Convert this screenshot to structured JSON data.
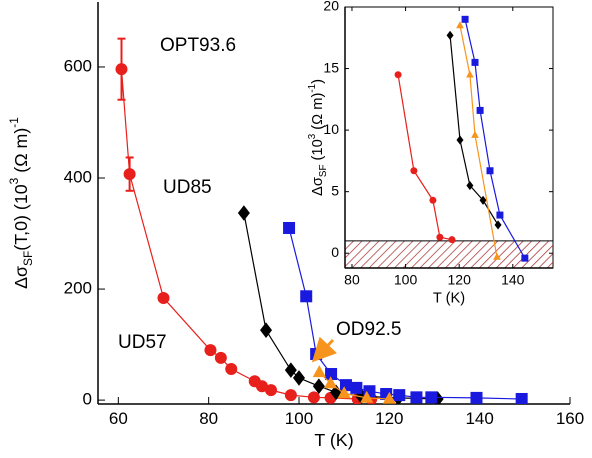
{
  "chart_data": [
    {
      "type": "scatter",
      "xlabel": "T (K)",
      "ylabel_parts": [
        {
          "text": "Δσ"
        },
        {
          "text": "SF",
          "sub": true
        },
        {
          "text": "(T,0)  (10"
        },
        {
          "text": "3",
          "sup": true
        },
        {
          "text": " (Ω m)"
        },
        {
          "text": "-1",
          "sup": true
        }
      ],
      "xlim": [
        55.5,
        160
      ],
      "ylim": [
        -7,
        717
      ],
      "xticks": [
        60,
        80,
        100,
        120,
        140,
        160
      ],
      "yticks": [
        0,
        200,
        400,
        600
      ],
      "series": [
        {
          "name": "UD57",
          "color": "#e8201c",
          "marker": "circle",
          "x": [
            60.7,
            62.5,
            70,
            80.4,
            82.7,
            85,
            90.2,
            91.8,
            93.8,
            98.2,
            103.3,
            107,
            113,
            116
          ],
          "values": [
            596,
            407,
            184,
            90,
            76,
            56,
            34,
            25,
            18,
            9,
            5,
            4,
            2,
            2
          ],
          "errors": [
            55,
            30,
            null,
            null,
            null,
            null,
            null,
            null,
            null,
            null,
            null,
            null,
            null,
            null
          ]
        },
        {
          "name": "UD85",
          "color": "#000000",
          "marker": "diamond",
          "x": [
            87.8,
            92.7,
            98.2,
            100,
            104.4,
            108.2,
            113.8,
            122,
            130.7
          ],
          "values": [
            337,
            126,
            54,
            40,
            25,
            14,
            7,
            4,
            2
          ]
        },
        {
          "name": "OPT93.6",
          "color": "#1a1adf",
          "marker": "square",
          "x": [
            97.8,
            101.6,
            103.8,
            107.1,
            110.4,
            112.7,
            115.6,
            119.3,
            122.2,
            126,
            129.3,
            139.3,
            149.3
          ],
          "values": [
            310,
            187,
            83,
            47,
            27,
            22,
            16,
            11,
            9,
            5,
            5,
            4,
            2
          ]
        },
        {
          "name": "OD92.5",
          "color": "#f7941d",
          "marker": "triangle",
          "x": [
            104.5,
            107,
            110,
            115,
            120
          ],
          "values": [
            50,
            30,
            12,
            4,
            2
          ]
        }
      ]
    },
    {
      "type": "scatter",
      "xlabel": "T (K)",
      "ylabel_parts": [
        {
          "text": "Δσ"
        },
        {
          "text": "SF",
          "sub": true
        },
        {
          "text": " (10"
        },
        {
          "text": "3",
          "sup": true
        },
        {
          "text": " (Ω m)"
        },
        {
          "text": "-1",
          "sup": true
        },
        {
          "text": ")"
        }
      ],
      "xlim": [
        77.4,
        155
      ],
      "ylim": [
        -1.2,
        20
      ],
      "xticks": [
        80,
        100,
        120,
        140
      ],
      "yticks": [
        0,
        5,
        10,
        15,
        20
      ],
      "shaded_below": 1,
      "series": [
        {
          "color": "#e8201c",
          "marker": "circle",
          "x": [
            97.2,
            103.1,
            110.2,
            112.8,
            117.3
          ],
          "values": [
            14.5,
            6.7,
            4.3,
            1.3,
            1.1
          ]
        },
        {
          "color": "#000000",
          "marker": "diamond",
          "x": [
            116.6,
            120.3,
            124,
            128.9,
            134.5
          ],
          "values": [
            17.7,
            9.2,
            5.5,
            4.3,
            2.3
          ]
        },
        {
          "color": "#f7941d",
          "marker": "triangle",
          "x": [
            120.3,
            124,
            125.9,
            134.1
          ],
          "values": [
            18.5,
            14.5,
            9.6,
            -0.3
          ]
        },
        {
          "color": "#1a1adf",
          "marker": "square",
          "x": [
            122.2,
            125.9,
            127.8,
            131.5,
            135.2,
            144.5
          ],
          "values": [
            19,
            15.5,
            11.6,
            6.7,
            3.1,
            -0.4
          ]
        }
      ]
    }
  ]
}
